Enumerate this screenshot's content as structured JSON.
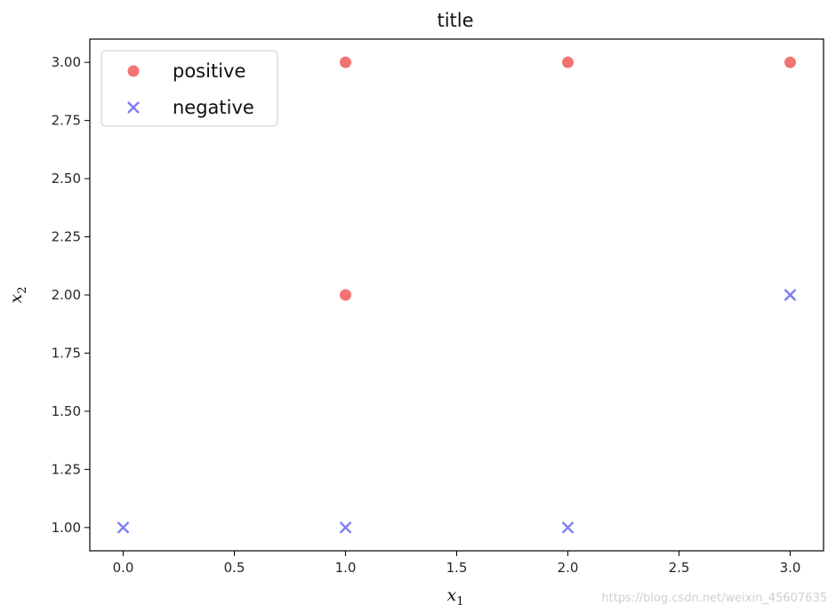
{
  "chart_data": {
    "type": "scatter",
    "title": "title",
    "xlabel": "x",
    "xlabel_sub": "1",
    "ylabel": "x",
    "ylabel_sub": "2",
    "xlim": [
      -0.15,
      3.15
    ],
    "ylim": [
      0.9,
      3.1
    ],
    "xticks": [
      0.0,
      0.5,
      1.0,
      1.5,
      2.0,
      2.5,
      3.0
    ],
    "xtick_labels": [
      "0.0",
      "0.5",
      "1.0",
      "1.5",
      "2.0",
      "2.5",
      "3.0"
    ],
    "yticks": [
      1.0,
      1.25,
      1.5,
      1.75,
      2.0,
      2.25,
      2.5,
      2.75,
      3.0
    ],
    "ytick_labels": [
      "1.00",
      "1.25",
      "1.50",
      "1.75",
      "2.00",
      "2.25",
      "2.50",
      "2.75",
      "3.00"
    ],
    "grid": false,
    "legend_position": "top-left",
    "series": [
      {
        "name": "positive",
        "marker": "circle",
        "color": "#f05050",
        "points": [
          [
            1,
            3
          ],
          [
            2,
            3
          ],
          [
            3,
            3
          ],
          [
            1,
            2
          ]
        ]
      },
      {
        "name": "negative",
        "marker": "x",
        "color": "#6666ee",
        "points": [
          [
            0,
            1
          ],
          [
            1,
            1
          ],
          [
            2,
            1
          ],
          [
            3,
            2
          ]
        ]
      }
    ]
  },
  "watermark": "https://blog.csdn.net/weixin_45607635"
}
